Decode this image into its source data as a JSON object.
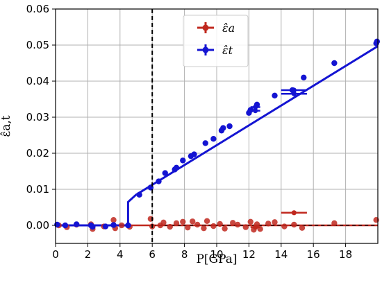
{
  "chart_data": {
    "type": "scatter",
    "xlabel": "P[GPa]",
    "ylabel": "ε̂a,t",
    "xlim": [
      0,
      20
    ],
    "ylim": [
      -0.005,
      0.06
    ],
    "xticks": [
      0,
      2,
      4,
      6,
      8,
      10,
      12,
      14,
      16,
      18
    ],
    "yticks": [
      0.0,
      0.01,
      0.02,
      0.03,
      0.04,
      0.05,
      0.06
    ],
    "xtick_labels": [
      "0",
      "2",
      "4",
      "6",
      "8",
      "10",
      "12",
      "14",
      "16",
      "18"
    ],
    "ytick_labels": [
      "0.00",
      "0.01",
      "0.02",
      "0.03",
      "0.04",
      "0.05",
      "0.06"
    ],
    "grid": true,
    "legend_position": "top-center",
    "vline_x": 6,
    "colors": {
      "axial": "#c0281e",
      "transverse": "#1414d2",
      "vline": "#000000",
      "grid": "#b0b0b0"
    },
    "series": [
      {
        "name": "ε̂a",
        "key": "axial",
        "points": [
          [
            0.2,
            0.0
          ],
          [
            0.7,
            -0.0005
          ],
          [
            1.3,
            0.0002
          ],
          [
            2.2,
            0.0003
          ],
          [
            2.3,
            -0.001
          ],
          [
            3.0,
            -0.0003
          ],
          [
            3.6,
            0.0015
          ],
          [
            3.7,
            -0.0008
          ],
          [
            4.1,
            0.0
          ],
          [
            4.6,
            -0.0004
          ],
          [
            5.9,
            0.0018
          ],
          [
            6.0,
            -0.0003
          ],
          [
            6.5,
            0.0
          ],
          [
            6.7,
            0.0008
          ],
          [
            7.1,
            -0.0004
          ],
          [
            7.5,
            0.0006
          ],
          [
            7.9,
            0.001
          ],
          [
            8.2,
            -0.0006
          ],
          [
            8.5,
            0.0011
          ],
          [
            8.8,
            0.0002
          ],
          [
            9.2,
            -0.0008
          ],
          [
            9.4,
            0.0012
          ],
          [
            9.8,
            -0.0002
          ],
          [
            10.2,
            0.0004
          ],
          [
            10.5,
            -0.0009
          ],
          [
            11.0,
            0.0007
          ],
          [
            11.3,
            0.0002
          ],
          [
            11.8,
            -0.0005
          ],
          [
            12.1,
            0.001
          ],
          [
            12.3,
            -0.0012
          ],
          [
            12.5,
            0.0003
          ],
          [
            12.7,
            -0.001
          ],
          [
            13.2,
            0.0005
          ],
          [
            13.6,
            0.0009
          ],
          [
            14.2,
            -0.0003
          ],
          [
            14.8,
            0.0002
          ],
          [
            15.3,
            -0.0007
          ],
          [
            17.3,
            0.0006
          ],
          [
            19.9,
            0.0015
          ]
        ],
        "error_bars": [
          {
            "x": 14.8,
            "y": 0.0035,
            "xerr": 0.8
          },
          {
            "x": 12.4,
            "y": -0.0005,
            "xerr": 0.3
          }
        ],
        "fit_line": [
          [
            0,
            0.0
          ],
          [
            20,
            0.0
          ]
        ]
      },
      {
        "name": "ε̂t",
        "key": "transverse",
        "points": [
          [
            0.1,
            0.0002
          ],
          [
            0.6,
            0.0
          ],
          [
            1.3,
            0.0003
          ],
          [
            2.2,
            0.0
          ],
          [
            2.3,
            -0.0004
          ],
          [
            3.1,
            -0.0003
          ],
          [
            3.6,
            0.0001
          ],
          [
            4.5,
            0.0
          ],
          [
            5.2,
            0.0085
          ],
          [
            5.9,
            0.0105
          ],
          [
            6.4,
            0.0122
          ],
          [
            6.8,
            0.0145
          ],
          [
            7.4,
            0.0155
          ],
          [
            7.5,
            0.016
          ],
          [
            7.9,
            0.018
          ],
          [
            8.4,
            0.0192
          ],
          [
            8.6,
            0.0197
          ],
          [
            9.3,
            0.0228
          ],
          [
            9.8,
            0.024
          ],
          [
            10.3,
            0.0263
          ],
          [
            10.4,
            0.027
          ],
          [
            10.8,
            0.0275
          ],
          [
            12.0,
            0.0312
          ],
          [
            12.1,
            0.032
          ],
          [
            12.5,
            0.0335
          ],
          [
            13.6,
            0.036
          ],
          [
            14.7,
            0.0375
          ],
          [
            15.4,
            0.041
          ],
          [
            17.3,
            0.045
          ],
          [
            19.9,
            0.0505
          ],
          [
            19.95,
            0.051
          ]
        ],
        "error_bars": [
          {
            "x": 14.8,
            "y": 0.0375,
            "xerr": 0.8
          },
          {
            "x": 14.8,
            "y": 0.0365,
            "xerr": 0.8
          },
          {
            "x": 12.4,
            "y": 0.0328,
            "xerr": 0.3
          },
          {
            "x": 12.4,
            "y": 0.0318,
            "xerr": 0.3
          }
        ],
        "fit_line": [
          [
            0,
            0.0
          ],
          [
            4.5,
            0.0
          ],
          [
            4.5,
            0.0065
          ],
          [
            5.0,
            0.0085
          ],
          [
            20,
            0.0497
          ]
        ]
      }
    ]
  }
}
